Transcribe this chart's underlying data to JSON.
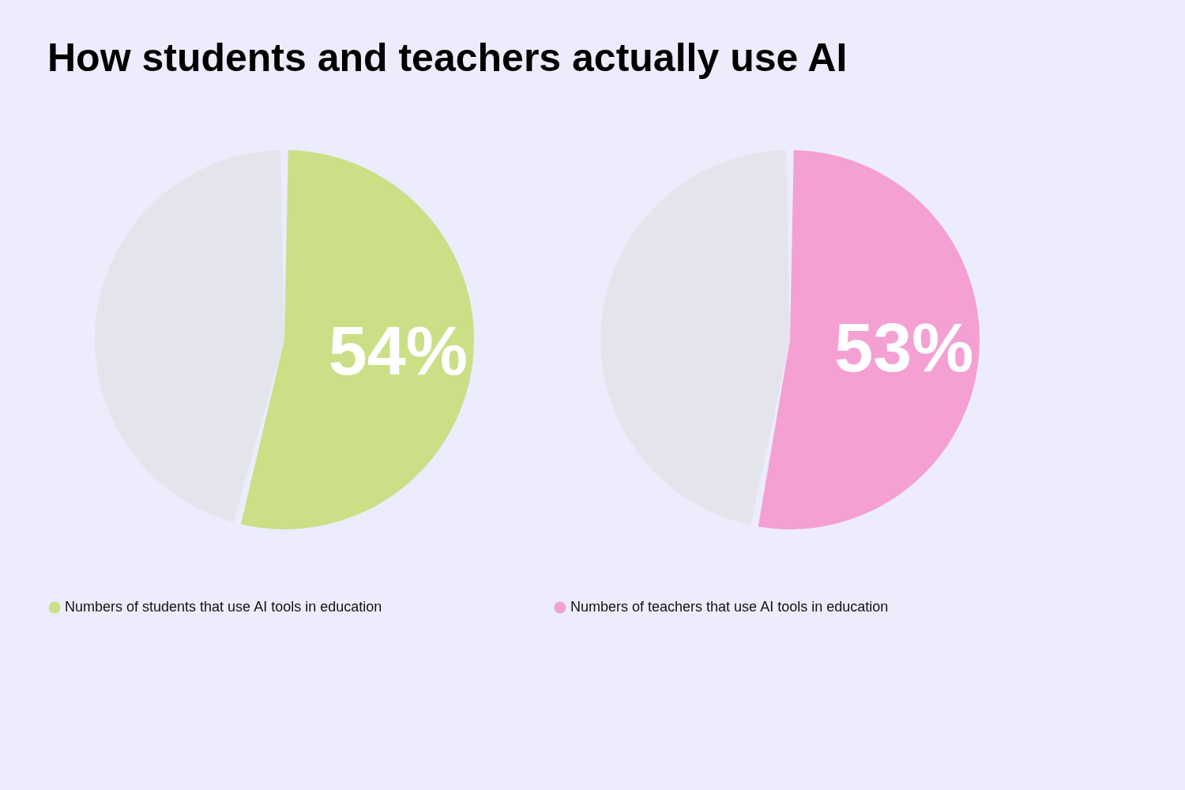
{
  "chart_data": [
    {
      "type": "pie",
      "title": "How students and teachers actually use AI",
      "categories": [
        "Numbers of students that use AI tools in education",
        null
      ],
      "values": [
        54,
        46
      ],
      "colors": [
        "#cbdf87",
        "#e4e5ec"
      ],
      "value_labels": [
        "54%",
        null
      ],
      "legend": "bottom"
    },
    {
      "type": "pie",
      "categories": [
        "Numbers of teachers that use AI tools in education",
        null
      ],
      "values": [
        53,
        47
      ],
      "colors": [
        "#f4a0d3",
        "#e4e5ec"
      ],
      "value_labels": [
        "53%",
        null
      ],
      "legend": "bottom"
    }
  ]
}
